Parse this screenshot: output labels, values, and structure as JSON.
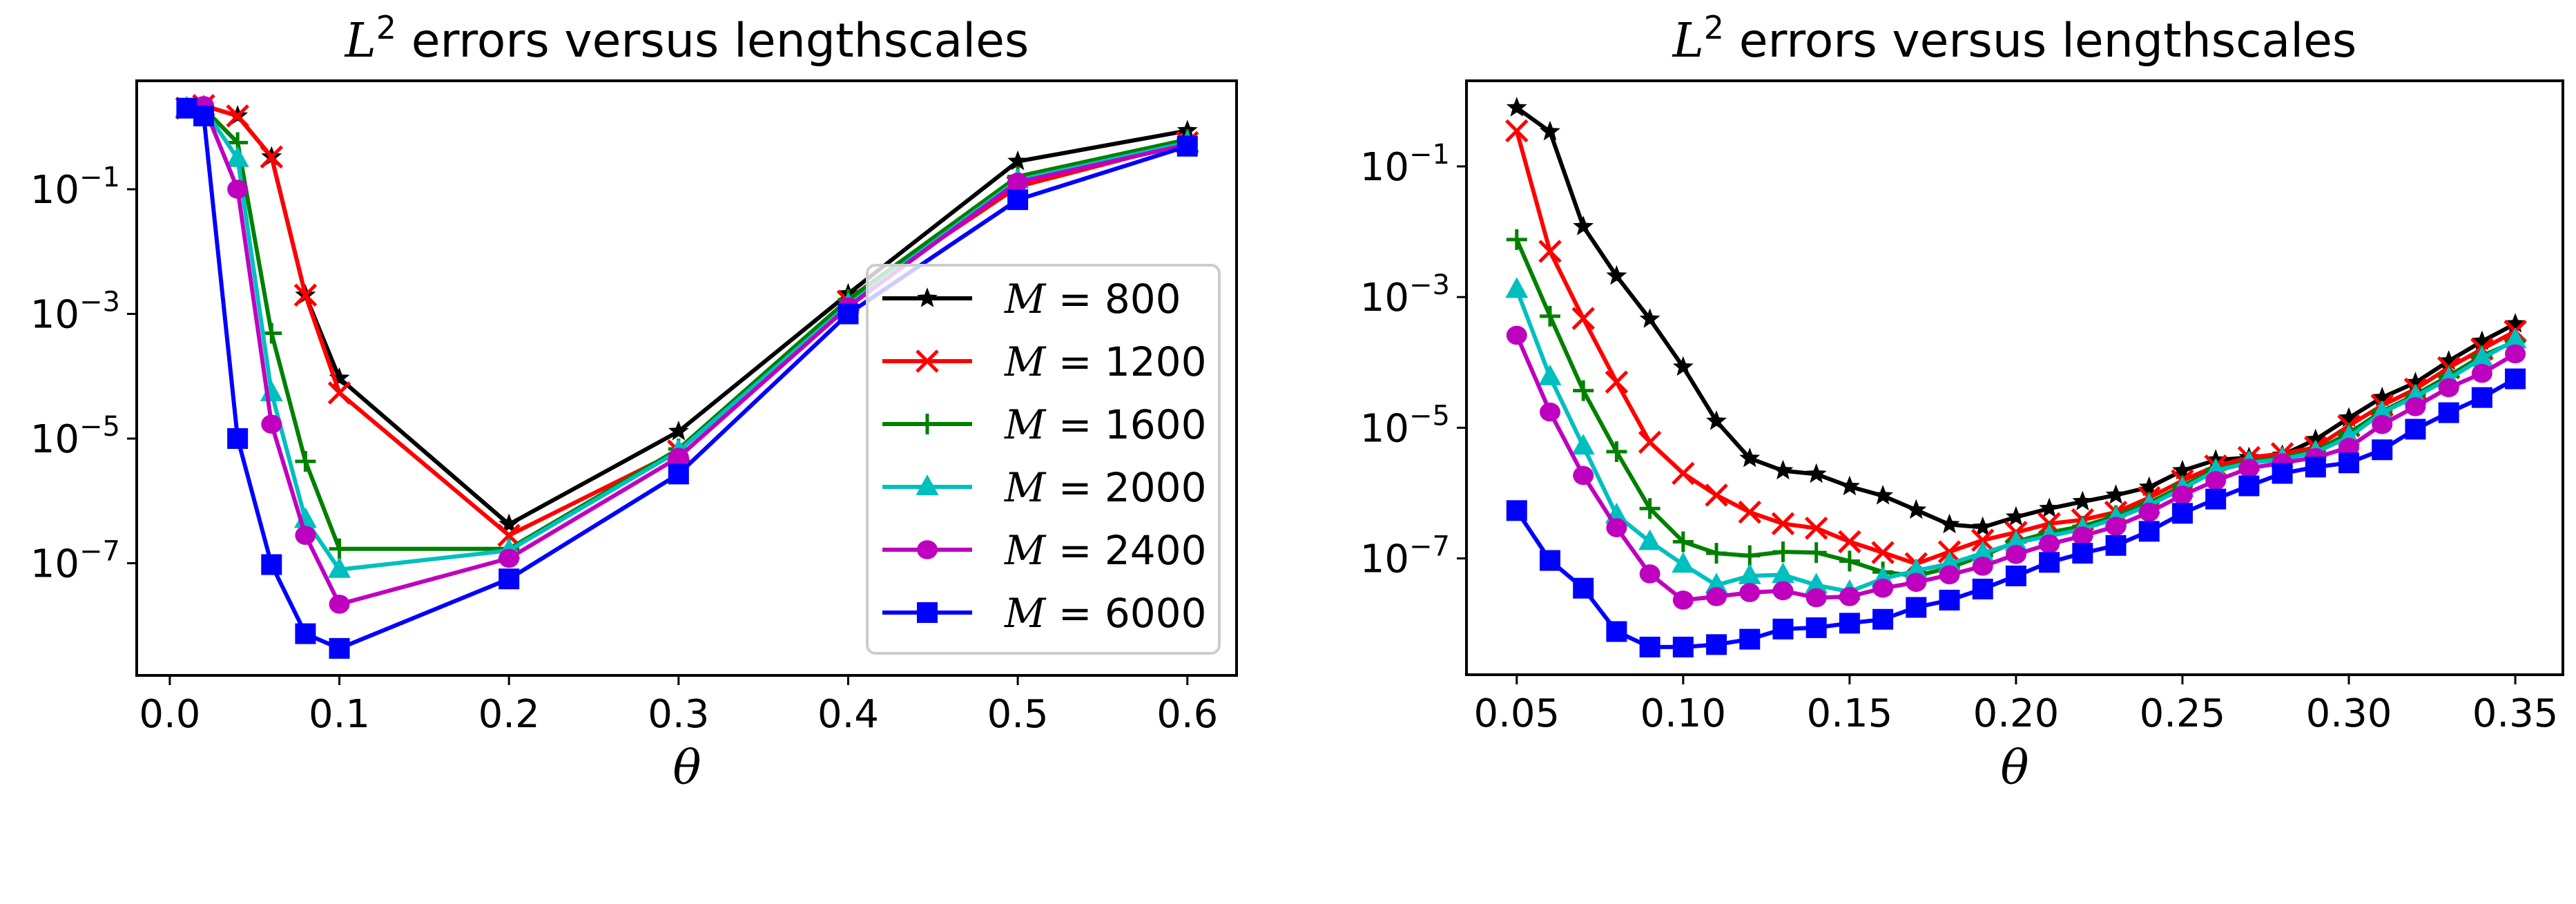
{
  "chart_data": [
    {
      "type": "line",
      "title": "L^2 errors versus lengthscales",
      "title_main": "L",
      "title_sup": "2",
      "title_rest": " errors versus lengthscales",
      "xlabel": "θ",
      "ylabel": "",
      "yscale": "log",
      "xlim": [
        -0.0195,
        0.629
      ],
      "ylim_log10": [
        -8.8,
        0.74
      ],
      "xticks": [
        0.0,
        0.1,
        0.2,
        0.3,
        0.4,
        0.5,
        0.6
      ],
      "xtick_labels": [
        "0.0",
        "0.1",
        "0.2",
        "0.3",
        "0.4",
        "0.5",
        "0.6"
      ],
      "yticks_exp": [
        -1,
        -3,
        -5,
        -7
      ],
      "ytick_labels": [
        "10",
        "10",
        "10",
        "10"
      ],
      "ytick_sups": [
        "−1",
        "−3",
        "−5",
        "−7"
      ],
      "grid": false,
      "legend": {
        "placement": "center-right"
      },
      "x": [
        0.01,
        0.02,
        0.04,
        0.06,
        0.08,
        0.1,
        0.2,
        0.3,
        0.4,
        0.5,
        0.6
      ],
      "series": [
        {
          "name": "M = 800",
          "m_value": "800",
          "color": "#000000",
          "marker": "star",
          "values": [
            2.0,
            2.2,
            1.5,
            0.33,
            0.002,
            9.3e-05,
            4.2e-07,
            1.3e-05,
            0.0021,
            0.28,
            0.87
          ]
        },
        {
          "name": "M = 1200",
          "m_value": "1200",
          "color": "#ff0000",
          "marker": "x",
          "values": [
            2.0,
            2.2,
            1.5,
            0.33,
            0.002,
            5.4e-05,
            2.8e-07,
            6.3e-06,
            0.0016,
            0.11,
            0.56
          ]
        },
        {
          "name": "M = 1600",
          "m_value": "1600",
          "color": "#008000",
          "marker": "plus",
          "values": [
            2.0,
            2.0,
            0.56,
            0.00049,
            4.3e-06,
            1.7e-07,
            1.7e-07,
            6.8e-06,
            0.0017,
            0.16,
            0.63
          ]
        },
        {
          "name": "M = 2000",
          "m_value": "2000",
          "color": "#00bfbf",
          "marker": "triangle",
          "values": [
            2.0,
            2.0,
            0.31,
            5.4e-05,
            5e-07,
            7.9e-08,
            1.6e-07,
            6.3e-06,
            0.0014,
            0.14,
            0.56
          ]
        },
        {
          "name": "M = 2400",
          "m_value": "2400",
          "color": "#bf00bf",
          "marker": "circle",
          "values": [
            2.0,
            2.2,
            0.1,
            1.7e-05,
            2.8e-07,
            2.2e-08,
            1.2e-07,
            5e-06,
            0.0013,
            0.13,
            0.52
          ]
        },
        {
          "name": "M = 6000",
          "m_value": "6000",
          "color": "#0000ff",
          "marker": "square",
          "values": [
            2.0,
            1.5,
            1e-05,
            9.5e-08,
            7.4e-09,
            4.3e-09,
            5.6e-08,
            2.7e-06,
            0.001,
            0.068,
            0.49
          ]
        }
      ]
    },
    {
      "type": "line",
      "title": "L^2 errors versus lengthscales",
      "title_main": "L",
      "title_sup": "2",
      "title_rest": " errors versus lengthscales",
      "xlabel": "θ",
      "ylabel": "",
      "yscale": "log",
      "xlim": [
        0.0349,
        0.3643
      ],
      "ylim_log10": [
        -8.78,
        0.31
      ],
      "xticks": [
        0.05,
        0.1,
        0.15,
        0.2,
        0.25,
        0.3,
        0.35
      ],
      "xtick_labels": [
        "0.05",
        "0.10",
        "0.15",
        "0.20",
        "0.25",
        "0.30",
        "0.35"
      ],
      "yticks_exp": [
        -1,
        -3,
        -5,
        -7
      ],
      "ytick_labels": [
        "10",
        "10",
        "10",
        "10"
      ],
      "ytick_sups": [
        "−1",
        "−3",
        "−5",
        "−7"
      ],
      "grid": false,
      "legend": {
        "placement": "none"
      },
      "x": [
        0.05,
        0.06,
        0.07,
        0.08,
        0.09,
        0.1,
        0.11,
        0.12,
        0.13,
        0.14,
        0.15,
        0.16,
        0.17,
        0.18,
        0.19,
        0.2,
        0.21,
        0.22,
        0.23,
        0.24,
        0.25,
        0.26,
        0.27,
        0.28,
        0.29,
        0.3,
        0.31,
        0.32,
        0.33,
        0.34,
        0.35
      ],
      "series": [
        {
          "name": "M = 800",
          "color": "#000000",
          "marker": "star",
          "values": [
            0.79,
            0.34,
            0.012,
            0.0021,
            0.00046,
            8.5e-05,
            1.26e-05,
            3.4e-06,
            2.2e-06,
            1.95e-06,
            1.26e-06,
            9.1e-07,
            5.5e-07,
            3.3e-07,
            3e-07,
            4.3e-07,
            5.8e-07,
            7.4e-07,
            9.3e-07,
            1.23e-06,
            2.2e-06,
            3.2e-06,
            3.5e-06,
            3.8e-06,
            6.6e-06,
            1.41e-05,
            2.9e-05,
            4.9e-05,
            0.000105,
            0.00021,
            0.00039
          ]
        },
        {
          "name": "M = 1200",
          "color": "#ff0000",
          "marker": "x",
          "values": [
            0.35,
            0.005,
            0.00047,
            5e-05,
            6e-06,
            2e-06,
            9.3e-07,
            5.1e-07,
            3.4e-07,
            2.9e-07,
            1.8e-07,
            1.23e-07,
            8.3e-08,
            1.26e-07,
            1.9e-07,
            2.5e-07,
            3.4e-07,
            3.9e-07,
            5.1e-07,
            8.5e-07,
            1.55e-06,
            2.6e-06,
            3.5e-06,
            4e-06,
            5e-06,
            1.07e-05,
            2.2e-05,
            3.9e-05,
            8.3e-05,
            0.00016,
            0.0003
          ]
        },
        {
          "name": "M = 1600",
          "color": "#008000",
          "marker": "plus",
          "values": [
            0.0076,
            0.00051,
            3.7e-05,
            4.3e-06,
            5.8e-07,
            1.8e-07,
            1.2e-07,
            1.1e-07,
            1.26e-07,
            1.23e-07,
            9.1e-08,
            6.2e-08,
            5.4e-08,
            7.2e-08,
            1.1e-07,
            1.8e-07,
            2.5e-07,
            3.1e-07,
            4.5e-07,
            7.1e-07,
            1.29e-06,
            2.3e-06,
            3e-06,
            3.5e-06,
            4.4e-06,
            8.3e-06,
            1.78e-05,
            3.2e-05,
            6.2e-05,
            0.000126,
            0.00021
          ]
        },
        {
          "name": "M = 2000",
          "color": "#00bfbf",
          "marker": "triangle",
          "values": [
            0.0013,
            6e-05,
            5.2e-06,
            4.6e-07,
            1.8e-07,
            8.1e-08,
            3.9e-08,
            5.4e-08,
            5.6e-08,
            3.9e-08,
            3.1e-08,
            4.9e-08,
            6.5e-08,
            8.3e-08,
            1.2e-07,
            1.74e-07,
            2.2e-07,
            2.8e-07,
            4.1e-07,
            6.5e-07,
            1.17e-06,
            2.2e-06,
            2.9e-06,
            3.3e-06,
            4.2e-06,
            7.2e-06,
            1.7e-05,
            3e-05,
            5.6e-05,
            0.000115,
            0.00022
          ]
        },
        {
          "name": "M = 2400",
          "color": "#bf00bf",
          "marker": "circle",
          "values": [
            0.00026,
            1.74e-05,
            1.86e-06,
            2.95e-07,
            5.8e-08,
            2.3e-08,
            2.6e-08,
            3e-08,
            3.2e-08,
            2.5e-08,
            2.6e-08,
            3.5e-08,
            4.3e-08,
            5.6e-08,
            7.6e-08,
            1.15e-07,
            1.66e-07,
            2.2e-07,
            3.1e-07,
            5.1e-07,
            9.3e-07,
            1.55e-06,
            2.4e-06,
            2.9e-06,
            3.5e-06,
            5e-06,
            1.12e-05,
            2.1e-05,
            4.1e-05,
            6.8e-05,
            0.000135
          ]
        },
        {
          "name": "M = 6000",
          "color": "#0000ff",
          "marker": "square",
          "values": [
            5.4e-07,
            9.3e-08,
            3.5e-08,
            7.6e-09,
            4.4e-09,
            4.4e-09,
            4.8e-09,
            5.8e-09,
            8.3e-09,
            8.7e-09,
            1.02e-08,
            1.17e-08,
            1.78e-08,
            2.3e-08,
            3.4e-08,
            5.4e-08,
            8.7e-08,
            1.2e-07,
            1.58e-07,
            2.6e-07,
            4.9e-07,
            8.1e-07,
            1.29e-06,
            2e-06,
            2.5e-06,
            2.9e-06,
            4.6e-06,
            9.5e-06,
            1.7e-05,
            2.9e-05,
            5.6e-05
          ]
        }
      ]
    }
  ]
}
